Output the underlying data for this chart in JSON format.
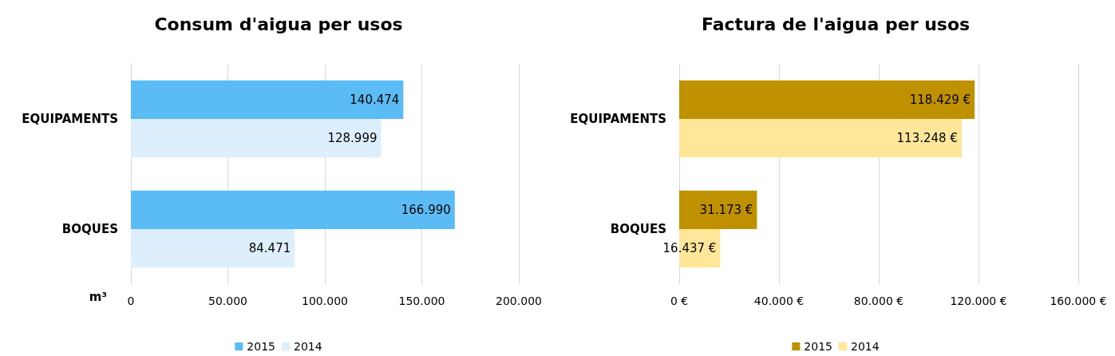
{
  "chart_data": [
    {
      "type": "bar",
      "orientation": "horizontal",
      "title": "Consum d'aigua per usos",
      "xlabel": "m³",
      "categories": [
        "EQUIPAMENTS",
        "BOQUES"
      ],
      "series": [
        {
          "name": "2015",
          "color": "#5bbcf5",
          "values": [
            140474,
            166990
          ],
          "value_labels": [
            "140.474",
            "166.990"
          ]
        },
        {
          "name": "2014",
          "color": "#ddeffc",
          "values": [
            128999,
            84471
          ],
          "value_labels": [
            "128.999",
            "84.471"
          ]
        }
      ],
      "xlim": [
        0,
        200000
      ],
      "xticks": [
        0,
        {
          "value": 50000,
          "label": "50.000"
        },
        {
          "value": 100000,
          "label": "100.000"
        },
        {
          "value": 150000,
          "label": "150.000"
        },
        {
          "value": 200000,
          "label": "200.000"
        }
      ],
      "grid": "x",
      "legend": "bottom"
    },
    {
      "type": "bar",
      "orientation": "horizontal",
      "title": "Factura de l'aigua per usos",
      "categories": [
        "EQUIPAMENTS",
        "BOQUES"
      ],
      "series": [
        {
          "name": "2015",
          "color": "#bf9000",
          "values": [
            118429,
            31173
          ],
          "value_labels": [
            "118.429 €",
            "31.173 €"
          ]
        },
        {
          "name": "2014",
          "color": "#ffe699",
          "values": [
            113248,
            16437
          ],
          "value_labels": [
            "113.248 €",
            "16.437 €"
          ]
        }
      ],
      "xlim": [
        0,
        160000
      ],
      "xticks": [
        {
          "value": 0,
          "label": "0 €"
        },
        {
          "value": 40000,
          "label": "40.000 €"
        },
        {
          "value": 80000,
          "label": "80.000 €"
        },
        {
          "value": 120000,
          "label": "120.000 €"
        },
        {
          "value": 160000,
          "label": "160.000 €"
        }
      ],
      "grid": "x",
      "legend": "bottom"
    }
  ]
}
